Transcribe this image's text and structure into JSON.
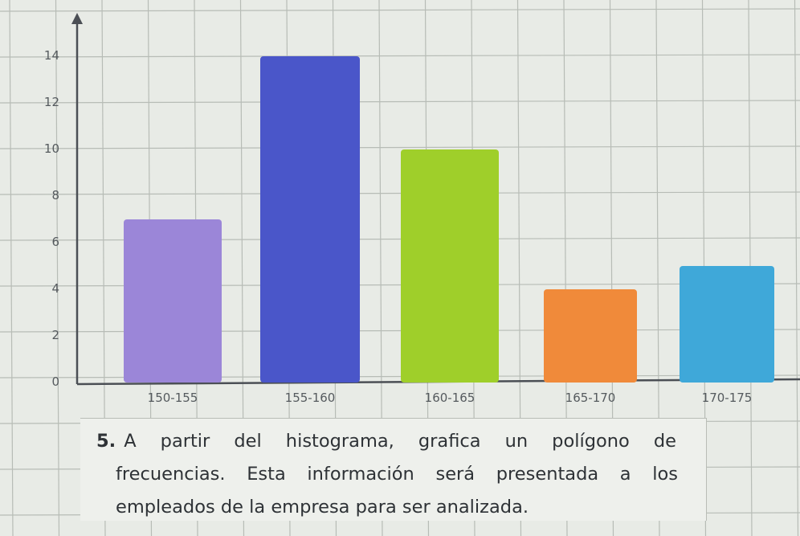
{
  "chart_data": {
    "type": "bar",
    "categories": [
      "150-155",
      "155-160",
      "160-165",
      "165-170",
      "170-175"
    ],
    "values": [
      7,
      14,
      10,
      4,
      5
    ],
    "colors": [
      "#9b86d8",
      "#4a56c9",
      "#9fcf2a",
      "#f08a3a",
      "#3fa8d9"
    ],
    "ylim": [
      0,
      14
    ],
    "yticks": [
      "0",
      "2",
      "4",
      "6",
      "8",
      "10",
      "12",
      "14"
    ],
    "grid": true,
    "title": "",
    "xlabel": "",
    "ylabel": ""
  },
  "exercise": {
    "number": "5.",
    "line1": "A partir del histograma, grafica un polígono de",
    "line2": "frecuencias. Esta información será presentada a los",
    "line3": "empleados de la empresa para ser analizada."
  }
}
